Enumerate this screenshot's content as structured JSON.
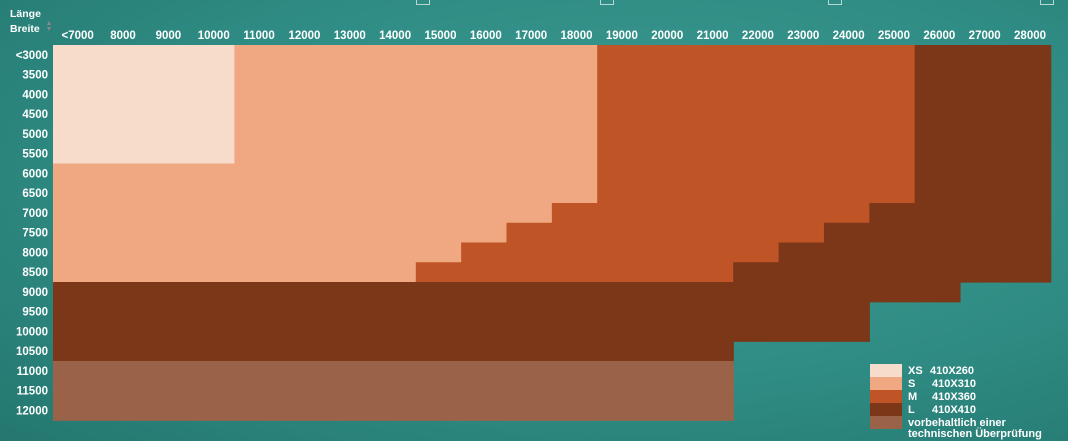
{
  "colors": {
    "xs": "#f7dccb",
    "s": "#f0a882",
    "m": "#bf5426",
    "l": "#7c3719",
    "review": "#9a6349"
  },
  "chart_data": {
    "type": "heatmap",
    "x_axis_label": "Länge",
    "y_axis_label": "Breite",
    "x_categories": [
      "<7000",
      "8000",
      "9000",
      "10000",
      "11000",
      "12000",
      "13000",
      "14000",
      "15000",
      "16000",
      "17000",
      "18000",
      "19000",
      "20000",
      "21000",
      "22000",
      "23000",
      "24000",
      "25000",
      "26000",
      "27000",
      "28000"
    ],
    "y_categories": [
      "<3000",
      "3500",
      "4000",
      "4500",
      "5000",
      "5500",
      "6000",
      "6500",
      "7000",
      "7500",
      "8000",
      "8500",
      "9000",
      "9500",
      "10000",
      "10500",
      "11000",
      "11500",
      "12000"
    ],
    "legend": [
      {
        "key": "XS",
        "size": "410X260",
        "color_key": "xs"
      },
      {
        "key": "S",
        "size": "410X310",
        "color_key": "s"
      },
      {
        "key": "M",
        "size": "410X360",
        "color_key": "m"
      },
      {
        "key": "L",
        "size": "410X410",
        "color_key": "l"
      },
      {
        "key": "R",
        "text": "vorbehaltlich einer technischen Überprüfung",
        "color_key": "review"
      }
    ],
    "rows": [
      "XXXXSSSSSSSSMMMMMMMLLL",
      "XXXXSSSSSSSSMMMMMMMLLL",
      "XXXXSSSSSSSSMMMMMMMLLL",
      "XXXXSSSSSSSSMMMMMMMLLL",
      "XXXXSSSSSSSSMMMMMMMLLL",
      "XXXXSSSSSSSSMMMMMMMLLL",
      "SSSSSSSSSSSSMMMMMMMLLL",
      "SSSSSSSSSSSSMMMMMMMLLL",
      "SSSSSSSSSSSMMMMMMMLLLL",
      "SSSSSSSSSSMMMMMMMLLLLL",
      "SSSSSSSSSMMMMMMMLLLLLL",
      "SSSSSSSSMMMMMMMLLLLLLL",
      "LLLLLLLLLLLLLLLLLLLL..",
      "LLLLLLLLLLLLLLLLLL....",
      "LLLLLLLLLLLLLLLLLL....",
      "LLLLLLLLLLLLLLL.......",
      "RRRRRRRRRRRRRRR.......",
      "RRRRRRRRRRRRRRR.......",
      "RRRRRRRRRRRRRRR......."
    ]
  }
}
